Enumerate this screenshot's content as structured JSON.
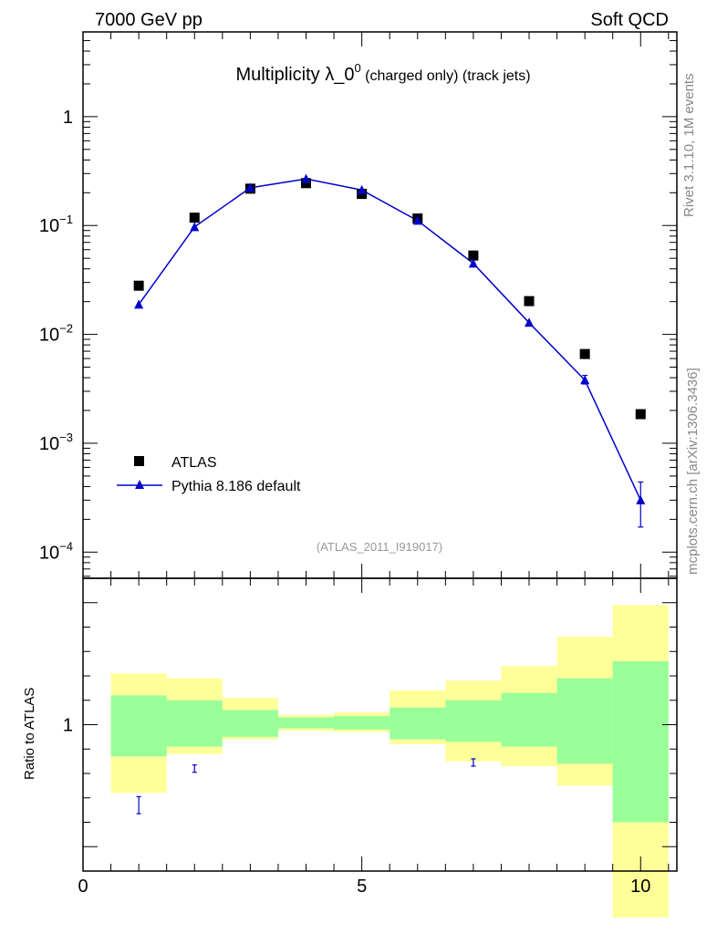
{
  "header": {
    "left_label": "7000 GeV pp",
    "right_label": "Soft QCD"
  },
  "side_labels": {
    "version": "Rivet 3.1.10,  1M events",
    "site": "mcplots.cern.ch [arXiv:1306.3436]"
  },
  "chart_data": {
    "type": "scatter",
    "title": {
      "main": "Multiplicity λ_0",
      "superscript": "0",
      "suffix": " (charged only) (track jets)"
    },
    "analysis_tag": "(ATLAS_2011_I919017)",
    "xlim": [
      0,
      10.65
    ],
    "x_ticks": [
      {
        "value": 0,
        "label": "0"
      },
      {
        "value": 5,
        "label": "5"
      },
      {
        "value": 10,
        "label": "10"
      }
    ],
    "main_panel": {
      "yscale": "log",
      "ylim": [
        5.75e-05,
        6.0
      ],
      "y_ticks": [
        {
          "value": 1,
          "base": "1",
          "exp": ""
        },
        {
          "value": 0.1,
          "base": "10",
          "exp": "−1"
        },
        {
          "value": 0.01,
          "base": "10",
          "exp": "−2"
        },
        {
          "value": 0.001,
          "base": "10",
          "exp": "−3"
        },
        {
          "value": 0.0001,
          "base": "10",
          "exp": "−4"
        }
      ],
      "legend_position": "bottom-left"
    },
    "series": [
      {
        "name": "ATLAS",
        "marker": "square",
        "color": "#000000",
        "x": [
          1,
          2,
          3,
          4,
          5,
          6,
          7,
          8,
          9,
          10
        ],
        "y": [
          0.028,
          0.118,
          0.218,
          0.245,
          0.195,
          0.116,
          0.053,
          0.0202,
          0.0066,
          0.00185
        ]
      },
      {
        "name": "Pythia 8.186 default",
        "marker": "triangle",
        "line": true,
        "color": "#0000cc",
        "x": [
          1,
          2,
          3,
          4,
          5,
          6,
          7,
          8,
          9,
          10
        ],
        "y": [
          0.0188,
          0.097,
          0.222,
          0.268,
          0.212,
          0.111,
          0.0448,
          0.0128,
          0.0038,
          0.0003
        ],
        "y_err_low": [
          0,
          0,
          0,
          0,
          0,
          0,
          0,
          0,
          0.0003,
          0.00013
        ],
        "y_err_high": [
          0,
          0,
          0,
          0,
          0,
          0,
          0,
          0,
          0.0004,
          0.00014
        ]
      }
    ],
    "ratio_panel": {
      "ylabel": "Ratio to ATLAS",
      "ylim": [
        0.4,
        1.6
      ],
      "y_ticks": [
        {
          "value": 1,
          "label": "1"
        }
      ],
      "bin_edges": [
        0.5,
        1.5,
        2.5,
        3.5,
        4.5,
        5.5,
        6.5,
        7.5,
        8.5,
        9.5,
        10.5
      ],
      "band_inner": {
        "color": "#99ff99",
        "low": [
          0.87,
          0.91,
          0.95,
          0.985,
          0.98,
          0.94,
          0.93,
          0.91,
          0.84,
          0.6
        ],
        "high": [
          1.12,
          1.1,
          1.06,
          1.03,
          1.035,
          1.07,
          1.1,
          1.13,
          1.19,
          1.26
        ]
      },
      "band_outer": {
        "color": "#ffff99",
        "low": [
          0.72,
          0.88,
          0.94,
          0.975,
          0.97,
          0.92,
          0.85,
          0.83,
          0.75,
          0.21
        ],
        "high": [
          1.21,
          1.19,
          1.11,
          1.04,
          1.05,
          1.14,
          1.18,
          1.24,
          1.36,
          1.49
        ]
      },
      "pythia_ratio": {
        "x": [
          1,
          2,
          7
        ],
        "y": [
          0.67,
          0.82,
          0.845
        ],
        "err": [
          0.035,
          0.015,
          0.015
        ]
      }
    }
  }
}
